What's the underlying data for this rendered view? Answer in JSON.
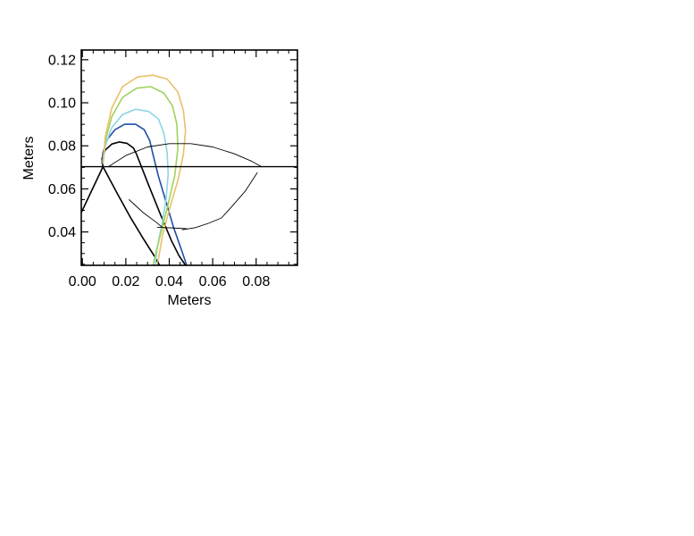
{
  "chart_data": {
    "type": "line",
    "xlabel": "Meters",
    "ylabel": "Meters",
    "xlim": [
      -0.0005,
      0.099
    ],
    "ylim": [
      0.0245,
      0.1245
    ],
    "xticks": [
      0.0,
      0.02,
      0.04,
      0.06,
      0.08
    ],
    "xtick_labels": [
      "0.00",
      "0.02",
      "0.04",
      "0.06",
      "0.08"
    ],
    "yticks": [
      0.04,
      0.06,
      0.08,
      0.1,
      0.12
    ],
    "ytick_labels": [
      "0.04",
      "0.06",
      "0.08",
      "0.10",
      "0.12"
    ],
    "grid": false,
    "series": [
      {
        "color": "#000000",
        "width": 1.6,
        "points": [
          [
            -0.0005,
            0.049
          ],
          [
            0.0095,
            0.0703
          ],
          [
            0.009,
            0.074
          ],
          [
            0.0105,
            0.078
          ],
          [
            0.0135,
            0.0808
          ],
          [
            0.017,
            0.0818
          ],
          [
            0.0205,
            0.0812
          ],
          [
            0.0235,
            0.079
          ],
          [
            0.025,
            0.076
          ],
          [
            0.03,
            0.063
          ],
          [
            0.036,
            0.048
          ],
          [
            0.041,
            0.036
          ],
          [
            0.0445,
            0.029
          ],
          [
            0.0475,
            0.0245
          ]
        ]
      },
      {
        "color": "#000000",
        "width": 1.6,
        "points": [
          [
            0.0095,
            0.0703
          ],
          [
            0.016,
            0.058
          ],
          [
            0.022,
            0.047
          ],
          [
            0.028,
            0.037
          ],
          [
            0.033,
            0.029
          ],
          [
            0.0355,
            0.0245
          ]
        ]
      },
      {
        "color": "#1f4fa8",
        "width": 1.6,
        "points": [
          [
            0.009,
            0.072
          ],
          [
            0.0095,
            0.077
          ],
          [
            0.0115,
            0.083
          ],
          [
            0.015,
            0.0875
          ],
          [
            0.0195,
            0.09
          ],
          [
            0.0245,
            0.09
          ],
          [
            0.0285,
            0.0875
          ],
          [
            0.031,
            0.0825
          ],
          [
            0.0325,
            0.076
          ],
          [
            0.035,
            0.066
          ],
          [
            0.0385,
            0.054
          ],
          [
            0.042,
            0.042
          ],
          [
            0.0455,
            0.032
          ],
          [
            0.048,
            0.0245
          ]
        ]
      },
      {
        "color": "#8fd4e6",
        "width": 1.6,
        "points": [
          [
            0.0095,
            0.072
          ],
          [
            0.0105,
            0.08
          ],
          [
            0.0135,
            0.0885
          ],
          [
            0.0185,
            0.0945
          ],
          [
            0.0245,
            0.097
          ],
          [
            0.0305,
            0.096
          ],
          [
            0.035,
            0.0925
          ],
          [
            0.0375,
            0.086
          ],
          [
            0.039,
            0.077
          ],
          [
            0.0395,
            0.067
          ],
          [
            0.0385,
            0.055
          ],
          [
            0.0365,
            0.043
          ],
          [
            0.0345,
            0.033
          ],
          [
            0.0335,
            0.0245
          ]
        ]
      },
      {
        "color": "#9fd35c",
        "width": 1.6,
        "points": [
          [
            0.0095,
            0.072
          ],
          [
            0.0105,
            0.082
          ],
          [
            0.0135,
            0.0935
          ],
          [
            0.0185,
            0.1025
          ],
          [
            0.025,
            0.1068
          ],
          [
            0.0315,
            0.1075
          ],
          [
            0.0375,
            0.1045
          ],
          [
            0.0415,
            0.0985
          ],
          [
            0.0435,
            0.09
          ],
          [
            0.044,
            0.079
          ],
          [
            0.0425,
            0.066
          ],
          [
            0.0395,
            0.053
          ],
          [
            0.0365,
            0.041
          ],
          [
            0.034,
            0.031
          ],
          [
            0.0325,
            0.0245
          ]
        ]
      },
      {
        "color": "#e8c06a",
        "width": 1.6,
        "points": [
          [
            0.0095,
            0.072
          ],
          [
            0.0105,
            0.084
          ],
          [
            0.0135,
            0.0975
          ],
          [
            0.0185,
            0.1075
          ],
          [
            0.0255,
            0.112
          ],
          [
            0.0325,
            0.1128
          ],
          [
            0.039,
            0.111
          ],
          [
            0.044,
            0.105
          ],
          [
            0.0465,
            0.0965
          ],
          [
            0.0475,
            0.087
          ],
          [
            0.0465,
            0.076
          ],
          [
            0.044,
            0.064
          ],
          [
            0.0405,
            0.052
          ],
          [
            0.037,
            0.039
          ],
          [
            0.0345,
            0.0245
          ]
        ]
      },
      {
        "color": "#000000",
        "width": 1.4,
        "points": [
          [
            -0.0005,
            0.0703
          ],
          [
            0.099,
            0.0703
          ]
        ]
      },
      {
        "color": "#000000",
        "width": 0.9,
        "points": [
          [
            0.012,
            0.0703
          ],
          [
            0.02,
            0.0755
          ],
          [
            0.03,
            0.0795
          ],
          [
            0.04,
            0.081
          ],
          [
            0.05,
            0.081
          ],
          [
            0.06,
            0.0795
          ],
          [
            0.07,
            0.0763
          ],
          [
            0.078,
            0.0728
          ],
          [
            0.0825,
            0.0703
          ]
        ]
      },
      {
        "color": "#000000",
        "width": 0.9,
        "points": [
          [
            0.0805,
            0.0675
          ],
          [
            0.075,
            0.059
          ],
          [
            0.069,
            0.052
          ],
          [
            0.064,
            0.0465
          ],
          [
            0.058,
            0.044
          ],
          [
            0.052,
            0.042
          ],
          [
            0.046,
            0.041
          ]
        ]
      },
      {
        "color": "#000000",
        "width": 0.9,
        "points": [
          [
            0.0215,
            0.055
          ],
          [
            0.028,
            0.049
          ],
          [
            0.034,
            0.0445
          ],
          [
            0.037,
            0.042
          ]
        ]
      },
      {
        "color": "#000000",
        "width": 0.9,
        "points": [
          [
            0.0345,
            0.0422
          ],
          [
            0.048,
            0.0415
          ]
        ]
      }
    ]
  }
}
